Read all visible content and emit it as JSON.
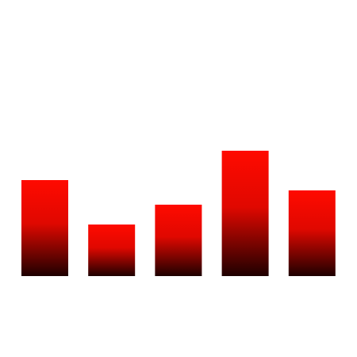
{
  "chart_data": {
    "type": "bar",
    "categories": [
      "",
      "",
      "",
      "",
      ""
    ],
    "values": [
      121,
      65,
      90,
      158,
      108
    ],
    "title": "",
    "xlabel": "",
    "ylabel": "",
    "ylim": [
      0,
      300
    ],
    "grid": false,
    "legend": "none",
    "colors": {
      "bar_top": "#ff0a00",
      "bar_bottom": "#1e0000",
      "background": "#ffffff"
    }
  }
}
